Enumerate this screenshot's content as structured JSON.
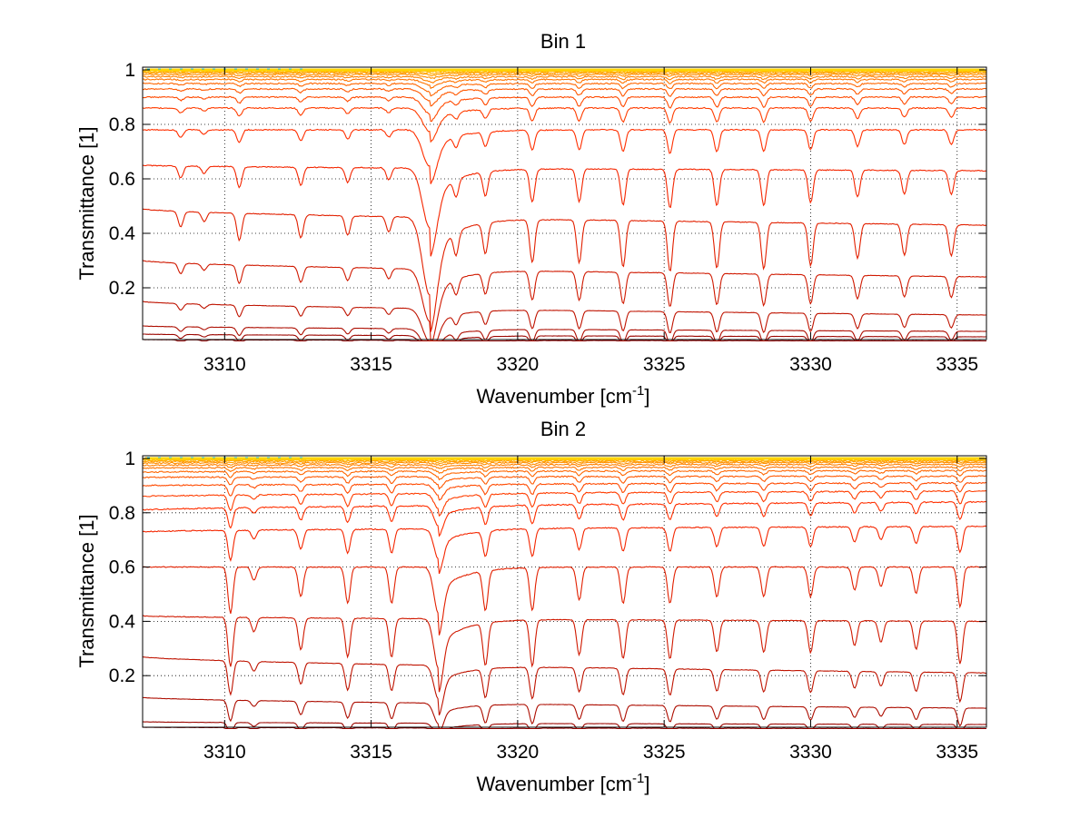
{
  "chart_data": [
    {
      "type": "line",
      "title": "Bin 1",
      "xlabel": "Wavenumber [cm",
      "xlabel_sup": "-1",
      "xlabel_end": "]",
      "ylabel": "Transmittance [1]",
      "xlim": [
        3307.2,
        3336.0
      ],
      "ylim": [
        0.01,
        1.01
      ],
      "xticks": [
        3310,
        3315,
        3320,
        3325,
        3330,
        3335
      ],
      "xtick_labels": [
        "3310",
        "3315",
        "3320",
        "3325",
        "3330",
        "3335"
      ],
      "yticks": [
        0.2,
        0.4,
        0.6,
        0.8,
        1.0
      ],
      "ytick_labels": [
        "0.2",
        "0.4",
        "0.6",
        "0.8",
        "1"
      ],
      "grid": "dotted",
      "legend": "none",
      "series_count": 20,
      "baselines_left": [
        0.01,
        0.03,
        0.06,
        0.15,
        0.3,
        0.49,
        0.65,
        0.78,
        0.86,
        0.9,
        0.93,
        0.95,
        0.965,
        0.975,
        0.983,
        0.989,
        0.993,
        0.996,
        0.998,
        0.999
      ],
      "baselines_right": [
        0.005,
        0.02,
        0.04,
        0.1,
        0.24,
        0.43,
        0.63,
        0.78,
        0.86,
        0.9,
        0.93,
        0.95,
        0.965,
        0.975,
        0.983,
        0.989,
        0.993,
        0.996,
        0.998,
        0.999
      ],
      "absorption_lines": [
        {
          "center": 3308.5,
          "depth": 0.2,
          "width": 0.12
        },
        {
          "center": 3309.3,
          "depth": 0.12,
          "width": 0.12
        },
        {
          "center": 3310.5,
          "depth": 0.35,
          "width": 0.12
        },
        {
          "center": 3312.6,
          "depth": 0.3,
          "width": 0.12
        },
        {
          "center": 3314.2,
          "depth": 0.25,
          "width": 0.12
        },
        {
          "center": 3315.6,
          "depth": 0.2,
          "width": 0.12
        },
        {
          "center": 3317.0,
          "depth": 1.0,
          "width": 0.35
        },
        {
          "center": 3317.9,
          "depth": 0.3,
          "width": 0.12
        },
        {
          "center": 3318.9,
          "depth": 0.4,
          "width": 0.12
        },
        {
          "center": 3320.5,
          "depth": 0.55,
          "width": 0.12
        },
        {
          "center": 3322.1,
          "depth": 0.55,
          "width": 0.12
        },
        {
          "center": 3323.6,
          "depth": 0.6,
          "width": 0.12
        },
        {
          "center": 3325.2,
          "depth": 0.65,
          "width": 0.12
        },
        {
          "center": 3326.8,
          "depth": 0.6,
          "width": 0.12
        },
        {
          "center": 3328.4,
          "depth": 0.6,
          "width": 0.12
        },
        {
          "center": 3330.0,
          "depth": 0.55,
          "width": 0.12
        },
        {
          "center": 3331.6,
          "depth": 0.45,
          "width": 0.12
        },
        {
          "center": 3333.2,
          "depth": 0.4,
          "width": 0.12
        },
        {
          "center": 3334.8,
          "depth": 0.4,
          "width": 0.12
        }
      ],
      "colors": {
        "low": "#8a0000",
        "mid": "#ff2a00",
        "high": "#ffd400",
        "top": "#21b6a8"
      }
    },
    {
      "type": "line",
      "title": "Bin 2",
      "xlabel": "Wavenumber [cm",
      "xlabel_sup": "-1",
      "xlabel_end": "]",
      "ylabel": "Transmittance [1]",
      "xlim": [
        3307.2,
        3336.0
      ],
      "ylim": [
        0.01,
        1.01
      ],
      "xticks": [
        3310,
        3315,
        3320,
        3325,
        3330,
        3335
      ],
      "xtick_labels": [
        "3310",
        "3315",
        "3320",
        "3325",
        "3330",
        "3335"
      ],
      "yticks": [
        0.2,
        0.4,
        0.6,
        0.8,
        1.0
      ],
      "ytick_labels": [
        "0.2",
        "0.4",
        "0.6",
        "0.8",
        "1"
      ],
      "grid": "dotted",
      "legend": "none",
      "series_count": 20,
      "baselines_left": [
        0.01,
        0.03,
        0.12,
        0.27,
        0.42,
        0.6,
        0.73,
        0.81,
        0.86,
        0.9,
        0.93,
        0.95,
        0.965,
        0.975,
        0.983,
        0.989,
        0.993,
        0.996,
        0.998,
        0.999
      ],
      "baselines_right": [
        0.005,
        0.02,
        0.08,
        0.21,
        0.4,
        0.6,
        0.75,
        0.84,
        0.88,
        0.91,
        0.935,
        0.955,
        0.968,
        0.978,
        0.985,
        0.99,
        0.994,
        0.996,
        0.998,
        0.999
      ],
      "absorption_lines": [
        {
          "center": 3310.2,
          "depth": 0.7,
          "width": 0.12
        },
        {
          "center": 3311.0,
          "depth": 0.2,
          "width": 0.12
        },
        {
          "center": 3312.6,
          "depth": 0.45,
          "width": 0.12
        },
        {
          "center": 3314.2,
          "depth": 0.55,
          "width": 0.12
        },
        {
          "center": 3315.7,
          "depth": 0.55,
          "width": 0.12
        },
        {
          "center": 3317.3,
          "depth": 0.7,
          "width": 0.22
        },
        {
          "center": 3318.9,
          "depth": 0.6,
          "width": 0.12
        },
        {
          "center": 3320.5,
          "depth": 0.65,
          "width": 0.12
        },
        {
          "center": 3322.1,
          "depth": 0.5,
          "width": 0.12
        },
        {
          "center": 3323.6,
          "depth": 0.55,
          "width": 0.12
        },
        {
          "center": 3325.2,
          "depth": 0.55,
          "width": 0.12
        },
        {
          "center": 3326.8,
          "depth": 0.45,
          "width": 0.12
        },
        {
          "center": 3328.4,
          "depth": 0.45,
          "width": 0.12
        },
        {
          "center": 3330.0,
          "depth": 0.45,
          "width": 0.12
        },
        {
          "center": 3331.5,
          "depth": 0.35,
          "width": 0.12
        },
        {
          "center": 3332.4,
          "depth": 0.3,
          "width": 0.12
        },
        {
          "center": 3333.6,
          "depth": 0.4,
          "width": 0.12
        },
        {
          "center": 3335.1,
          "depth": 0.6,
          "width": 0.12
        }
      ],
      "colors": {
        "low": "#8a0000",
        "mid": "#ff2a00",
        "high": "#ffd400",
        "top": "#21b6a8"
      }
    }
  ]
}
